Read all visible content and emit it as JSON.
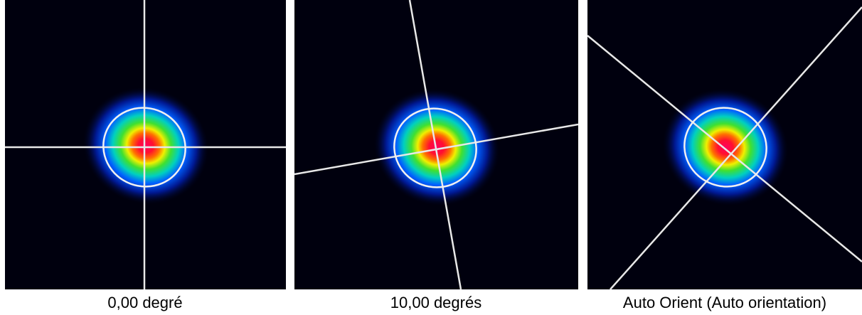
{
  "panels": [
    {
      "caption": "0,00 degré"
    },
    {
      "caption": "10,00 degrés"
    },
    {
      "caption": "Auto Orient (Auto orientation)"
    }
  ]
}
